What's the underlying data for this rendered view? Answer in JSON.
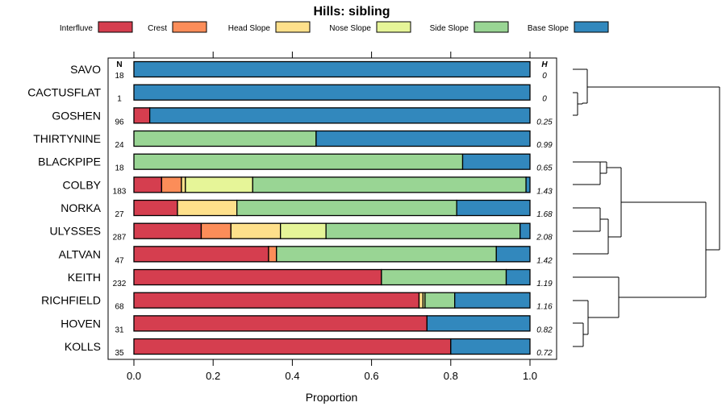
{
  "chart_data": {
    "type": "stacked-bar-horizontal",
    "title": "Hills: sibling",
    "xlabel": "Proportion",
    "ylabel": "",
    "xlim": [
      0,
      1
    ],
    "x_ticks": [
      "0.0",
      "0.2",
      "0.4",
      "0.6",
      "0.8",
      "1.0"
    ],
    "x_tick_values": [
      0,
      0.2,
      0.4,
      0.6,
      0.8,
      1.0
    ],
    "n_header": "N",
    "h_header": "H",
    "legend": [
      {
        "name": "Interfluve",
        "color": "#d53e4f"
      },
      {
        "name": "Crest",
        "color": "#fc8d59"
      },
      {
        "name": "Head Slope",
        "color": "#fee08b"
      },
      {
        "name": "Nose Slope",
        "color": "#e6f598"
      },
      {
        "name": "Side Slope",
        "color": "#99d594"
      },
      {
        "name": "Base Slope",
        "color": "#3288bd"
      }
    ],
    "categories": [
      "SAVO",
      "CACTUSFLAT",
      "GOSHEN",
      "THIRTYNINE",
      "BLACKPIPE",
      "COLBY",
      "NORKA",
      "ULYSSES",
      "ALTVAN",
      "KEITH",
      "RICHFIELD",
      "HOVEN",
      "KOLLS"
    ],
    "n": [
      "18",
      "1",
      "96",
      "24",
      "18",
      "183",
      "27",
      "287",
      "47",
      "232",
      "68",
      "31",
      "35"
    ],
    "h": [
      "0",
      "0",
      "0.25",
      "0.99",
      "0.65",
      "1.43",
      "1.68",
      "2.08",
      "1.42",
      "1.19",
      "1.16",
      "0.82",
      "0.72"
    ],
    "series": [
      {
        "name": "Interfluve",
        "values": [
          0,
          0,
          0.04,
          0,
          0,
          0.07,
          0.11,
          0.17,
          0.34,
          0.625,
          0.72,
          0.74,
          0.8
        ]
      },
      {
        "name": "Crest",
        "values": [
          0,
          0,
          0,
          0,
          0,
          0.05,
          0,
          0.075,
          0.02,
          0,
          0,
          0,
          0
        ]
      },
      {
        "name": "Head Slope",
        "values": [
          0,
          0,
          0,
          0,
          0,
          0.01,
          0.15,
          0.125,
          0,
          0,
          0.01,
          0,
          0
        ]
      },
      {
        "name": "Nose Slope",
        "values": [
          0,
          0,
          0,
          0,
          0,
          0.17,
          0,
          0.115,
          0,
          0,
          0.005,
          0,
          0
        ]
      },
      {
        "name": "Side Slope",
        "values": [
          0,
          0,
          0,
          0.46,
          0.83,
          0.69,
          0.555,
          0.49,
          0.555,
          0.315,
          0.075,
          0,
          0
        ]
      },
      {
        "name": "Base Slope",
        "values": [
          1.0,
          1.0,
          0.96,
          0.54,
          0.17,
          0.01,
          0.185,
          0.025,
          0.085,
          0.06,
          0.19,
          0.26,
          0.2
        ]
      }
    ]
  }
}
